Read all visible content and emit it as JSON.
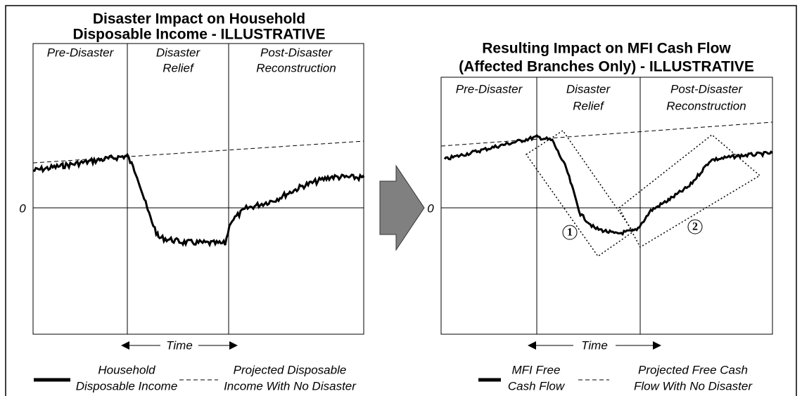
{
  "left": {
    "title_lines": [
      "Disaster Impact on Household",
      "Disposable Income - ILLUSTRATIVE"
    ],
    "sections": [
      [
        "Pre-Disaster"
      ],
      [
        "Disaster",
        "Relief"
      ],
      [
        "Post-Disaster",
        "Reconstruction"
      ]
    ],
    "zero_label": "0",
    "time_label": "Time",
    "legend": [
      [
        "Household",
        "Disposable Income"
      ],
      [
        "Projected Disposable",
        "Income With No Disaster"
      ]
    ]
  },
  "right": {
    "title_lines": [
      "Resulting Impact on MFI Cash Flow",
      "(Affected Branches Only) - ILLUSTRATIVE"
    ],
    "sections": [
      [
        "Pre-Disaster"
      ],
      [
        "Disaster",
        "Relief"
      ],
      [
        "Post-Disaster",
        "Reconstruction"
      ]
    ],
    "zero_label": "0",
    "time_label": "Time",
    "markers": [
      "1",
      "2"
    ],
    "legend": [
      [
        "MFI Free",
        "Cash Flow"
      ],
      [
        "Projected Free Cash",
        "Flow With No Disaster"
      ]
    ]
  }
}
